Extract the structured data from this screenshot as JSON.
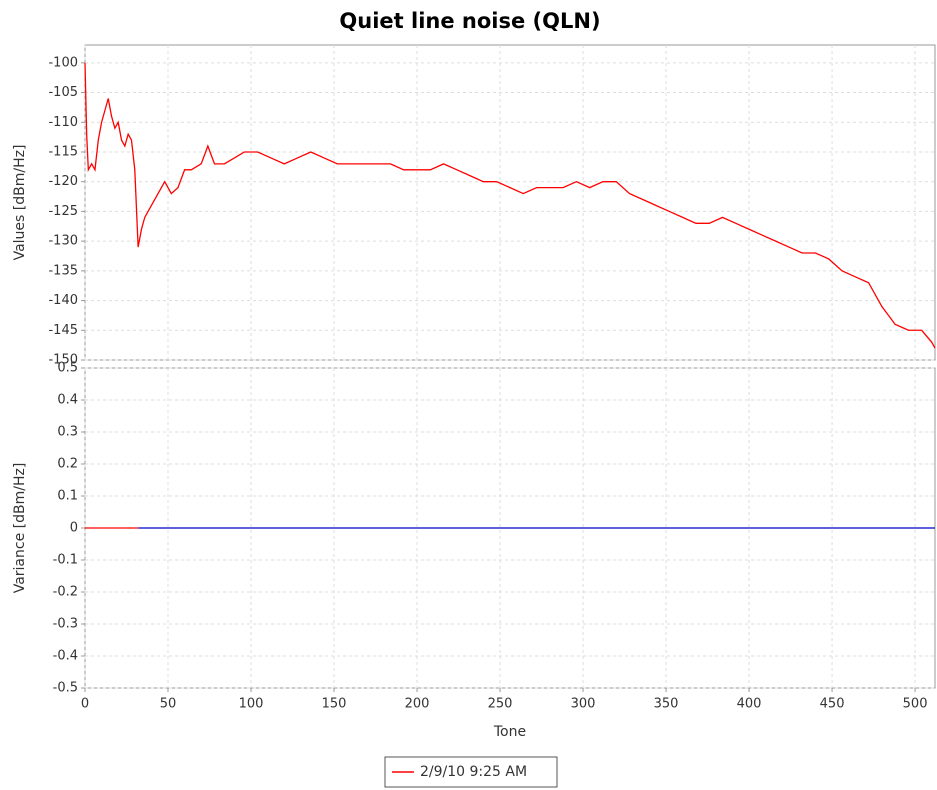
{
  "chart_data": [
    {
      "type": "line",
      "title": "Quiet line noise (QLN)",
      "ylabel": "Values [dBm/Hz]",
      "xlim": [
        0,
        512
      ],
      "xticks": [
        0,
        50,
        100,
        150,
        200,
        250,
        300,
        350,
        400,
        450,
        500
      ],
      "ylim": [
        -150,
        -97
      ],
      "yticks": [
        -150,
        -145,
        -140,
        -135,
        -130,
        -125,
        -120,
        -115,
        -110,
        -105,
        -100
      ],
      "grid": true,
      "series": [
        {
          "name": "2/9/10 9:25 AM",
          "color": "#ff0000",
          "x": [
            0,
            1,
            2,
            4,
            6,
            8,
            10,
            12,
            14,
            16,
            18,
            20,
            22,
            24,
            26,
            28,
            30,
            32,
            34,
            36,
            40,
            44,
            48,
            52,
            56,
            60,
            64,
            70,
            74,
            78,
            84,
            90,
            96,
            104,
            112,
            120,
            128,
            136,
            144,
            152,
            160,
            168,
            176,
            184,
            192,
            200,
            208,
            216,
            224,
            232,
            240,
            248,
            256,
            264,
            272,
            280,
            288,
            296,
            304,
            312,
            320,
            328,
            336,
            344,
            352,
            360,
            368,
            376,
            384,
            392,
            400,
            408,
            416,
            424,
            432,
            440,
            448,
            456,
            464,
            472,
            480,
            488,
            496,
            504,
            510,
            512
          ],
          "values": [
            -100,
            -112,
            -118,
            -117,
            -118,
            -113,
            -110,
            -108,
            -106,
            -109,
            -111,
            -110,
            -113,
            -114,
            -112,
            -113,
            -118,
            -131,
            -128,
            -126,
            -124,
            -122,
            -120,
            -122,
            -121,
            -118,
            -118,
            -117,
            -114,
            -117,
            -117,
            -116,
            -115,
            -115,
            -116,
            -117,
            -116,
            -115,
            -116,
            -117,
            -117,
            -117,
            -117,
            -117,
            -118,
            -118,
            -118,
            -117,
            -118,
            -119,
            -120,
            -120,
            -121,
            -122,
            -121,
            -121,
            -121,
            -120,
            -121,
            -120,
            -120,
            -122,
            -123,
            -124,
            -125,
            -126,
            -127,
            -127,
            -126,
            -127,
            -128,
            -129,
            -130,
            -131,
            -132,
            -132,
            -133,
            -135,
            -136,
            -137,
            -141,
            -144,
            -145,
            -145,
            -147,
            -148
          ]
        }
      ]
    },
    {
      "type": "line",
      "ylabel": "Variance [dBm/Hz]",
      "xlabel": "Tone",
      "xlim": [
        0,
        512
      ],
      "xticks": [
        0,
        50,
        100,
        150,
        200,
        250,
        300,
        350,
        400,
        450,
        500
      ],
      "ylim": [
        -0.5,
        0.5
      ],
      "yticks": [
        -0.5,
        -0.4,
        -0.3,
        -0.2,
        -0.1,
        0,
        0.1,
        0.2,
        0.3,
        0.4,
        0.5
      ],
      "grid": true,
      "series": [
        {
          "color": "#ff0000",
          "x": [
            0,
            32
          ],
          "values": [
            0,
            0
          ]
        },
        {
          "color": "#0000cc",
          "x": [
            32,
            512
          ],
          "values": [
            0,
            0
          ]
        }
      ]
    }
  ]
}
